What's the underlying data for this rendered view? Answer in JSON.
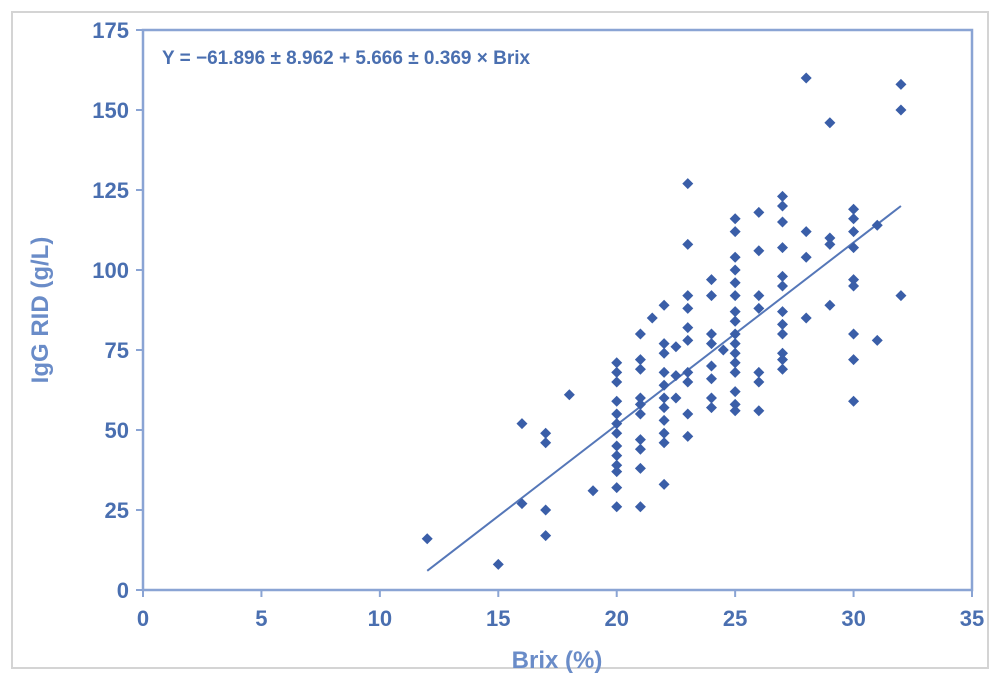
{
  "chart_data": {
    "type": "scatter",
    "title": "",
    "xlabel": "Brix (%)",
    "ylabel": "IgG RID (g/L)",
    "xlim": [
      0,
      35
    ],
    "ylim": [
      0,
      175
    ],
    "xticks": [
      "0",
      "5",
      "10",
      "15",
      "20",
      "25",
      "30",
      "35"
    ],
    "yticks": [
      "0",
      "25",
      "50",
      "75",
      "100",
      "125",
      "150",
      "175"
    ],
    "grid": false,
    "legend": "none",
    "annotation": "Y = −61.896 ± 8.962 + 5.666 ± 0.369 × Brix",
    "colors": {
      "marker": "#3a5ea8",
      "axis": "#8aa4d4",
      "text": "#4a6fb0",
      "title": "#6a8cc8"
    },
    "regression_line": {
      "x": [
        12,
        32
      ],
      "y": [
        6,
        120
      ]
    },
    "series": [
      {
        "marker": "diamond",
        "points": [
          [
            12,
            16
          ],
          [
            15,
            8
          ],
          [
            16,
            52
          ],
          [
            16,
            27
          ],
          [
            17,
            49
          ],
          [
            17,
            46
          ],
          [
            17,
            25
          ],
          [
            17,
            17
          ],
          [
            18,
            61
          ],
          [
            19,
            31
          ],
          [
            20,
            71
          ],
          [
            20,
            68
          ],
          [
            20,
            65
          ],
          [
            20,
            59
          ],
          [
            20,
            55
          ],
          [
            20,
            52
          ],
          [
            20,
            49
          ],
          [
            20,
            45
          ],
          [
            20,
            42
          ],
          [
            20,
            39
          ],
          [
            20,
            37
          ],
          [
            20,
            32
          ],
          [
            20,
            26
          ],
          [
            21,
            80
          ],
          [
            21,
            72
          ],
          [
            21,
            69
          ],
          [
            21,
            60
          ],
          [
            21,
            58
          ],
          [
            21,
            55
          ],
          [
            21,
            47
          ],
          [
            21,
            44
          ],
          [
            21,
            38
          ],
          [
            21,
            26
          ],
          [
            21.5,
            85
          ],
          [
            22,
            89
          ],
          [
            22,
            77
          ],
          [
            22,
            74
          ],
          [
            22,
            68
          ],
          [
            22,
            64
          ],
          [
            22,
            60
          ],
          [
            22,
            57
          ],
          [
            22,
            53
          ],
          [
            22,
            49
          ],
          [
            22,
            46
          ],
          [
            22,
            33
          ],
          [
            22.5,
            76
          ],
          [
            22.5,
            60
          ],
          [
            22.5,
            67
          ],
          [
            23,
            127
          ],
          [
            23,
            108
          ],
          [
            23,
            92
          ],
          [
            23,
            88
          ],
          [
            23,
            82
          ],
          [
            23,
            78
          ],
          [
            23,
            68
          ],
          [
            23,
            65
          ],
          [
            23,
            55
          ],
          [
            23,
            48
          ],
          [
            24,
            97
          ],
          [
            24,
            92
          ],
          [
            24,
            80
          ],
          [
            24,
            77
          ],
          [
            24,
            70
          ],
          [
            24,
            66
          ],
          [
            24,
            60
          ],
          [
            24,
            57
          ],
          [
            24.5,
            75
          ],
          [
            25,
            116
          ],
          [
            25,
            112
          ],
          [
            25,
            104
          ],
          [
            25,
            100
          ],
          [
            25,
            96
          ],
          [
            25,
            92
          ],
          [
            25,
            87
          ],
          [
            25,
            84
          ],
          [
            25,
            80
          ],
          [
            25,
            77
          ],
          [
            25,
            74
          ],
          [
            25,
            71
          ],
          [
            25,
            68
          ],
          [
            25,
            62
          ],
          [
            25,
            58
          ],
          [
            25,
            56
          ],
          [
            26,
            118
          ],
          [
            26,
            106
          ],
          [
            26,
            92
          ],
          [
            26,
            88
          ],
          [
            26,
            68
          ],
          [
            26,
            65
          ],
          [
            26,
            56
          ],
          [
            27,
            123
          ],
          [
            27,
            120
          ],
          [
            27,
            115
          ],
          [
            27,
            107
          ],
          [
            27,
            98
          ],
          [
            27,
            95
          ],
          [
            27,
            87
          ],
          [
            27,
            83
          ],
          [
            27,
            80
          ],
          [
            27,
            74
          ],
          [
            27,
            72
          ],
          [
            27,
            69
          ],
          [
            28,
            160
          ],
          [
            28,
            112
          ],
          [
            28,
            104
          ],
          [
            28,
            85
          ],
          [
            29,
            146
          ],
          [
            29,
            110
          ],
          [
            29,
            108
          ],
          [
            29,
            89
          ],
          [
            30,
            119
          ],
          [
            30,
            116
          ],
          [
            30,
            112
          ],
          [
            30,
            107
          ],
          [
            30,
            97
          ],
          [
            30,
            95
          ],
          [
            30,
            80
          ],
          [
            30,
            72
          ],
          [
            30,
            59
          ],
          [
            31,
            114
          ],
          [
            31,
            78
          ],
          [
            32,
            158
          ],
          [
            32,
            150
          ],
          [
            32,
            92
          ]
        ]
      }
    ]
  }
}
